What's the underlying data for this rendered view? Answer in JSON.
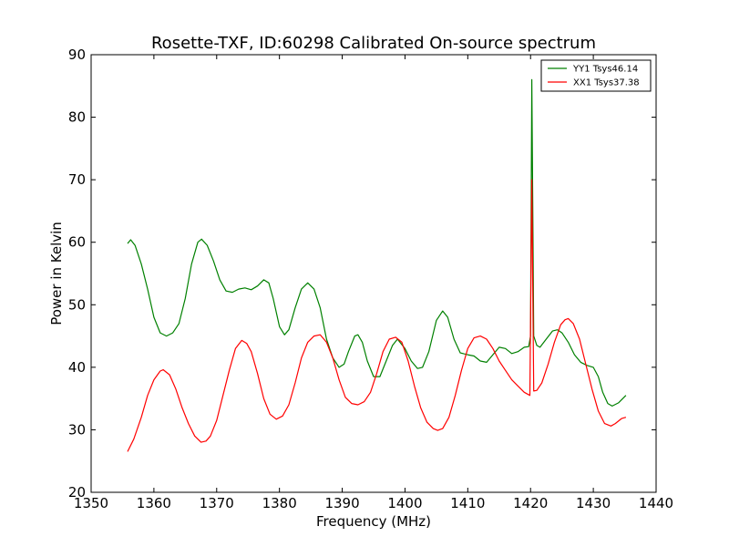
{
  "chart_data": {
    "type": "line",
    "title": "Rosette-TXF, ID:60298 Calibrated On-source spectrum",
    "xlabel": "Frequency (MHz)",
    "ylabel": "Power in Kelvin",
    "xlim": [
      1350,
      1440
    ],
    "ylim": [
      20,
      90
    ],
    "xticks": [
      "1350",
      "1360",
      "1370",
      "1380",
      "1390",
      "1400",
      "1410",
      "1420",
      "1430",
      "1440"
    ],
    "yticks": [
      "20",
      "30",
      "40",
      "50",
      "60",
      "70",
      "80",
      "90"
    ],
    "grid": false,
    "legend_position": "top-right",
    "series": [
      {
        "name": "YY1 Tsys46.14",
        "color": "#008000",
        "points": [
          [
            1355.8,
            59.8
          ],
          [
            1356.3,
            60.4
          ],
          [
            1357.0,
            59.5
          ],
          [
            1358.0,
            56.5
          ],
          [
            1359.0,
            52.5
          ],
          [
            1360.0,
            48.0
          ],
          [
            1361.0,
            45.5
          ],
          [
            1362.0,
            45.0
          ],
          [
            1363.0,
            45.5
          ],
          [
            1364.0,
            47.0
          ],
          [
            1365.0,
            51.0
          ],
          [
            1366.0,
            56.5
          ],
          [
            1367.0,
            60.0
          ],
          [
            1367.6,
            60.5
          ],
          [
            1368.5,
            59.5
          ],
          [
            1369.5,
            57.0
          ],
          [
            1370.5,
            54.0
          ],
          [
            1371.5,
            52.2
          ],
          [
            1372.5,
            52.0
          ],
          [
            1373.5,
            52.5
          ],
          [
            1374.5,
            52.7
          ],
          [
            1375.5,
            52.4
          ],
          [
            1376.5,
            53.0
          ],
          [
            1377.5,
            54.0
          ],
          [
            1378.3,
            53.5
          ],
          [
            1379.0,
            51.0
          ],
          [
            1380.0,
            46.5
          ],
          [
            1380.8,
            45.2
          ],
          [
            1381.5,
            46.0
          ],
          [
            1382.5,
            49.5
          ],
          [
            1383.5,
            52.5
          ],
          [
            1384.5,
            53.5
          ],
          [
            1385.5,
            52.5
          ],
          [
            1386.5,
            49.5
          ],
          [
            1387.5,
            44.5
          ],
          [
            1388.5,
            41.5
          ],
          [
            1389.5,
            40.0
          ],
          [
            1390.3,
            40.5
          ],
          [
            1391.0,
            42.5
          ],
          [
            1392.0,
            45.0
          ],
          [
            1392.5,
            45.2
          ],
          [
            1393.2,
            44.0
          ],
          [
            1394.0,
            41.0
          ],
          [
            1395.0,
            38.5
          ],
          [
            1396.0,
            38.5
          ],
          [
            1397.0,
            41.0
          ],
          [
            1398.0,
            43.5
          ],
          [
            1398.8,
            44.5
          ],
          [
            1400.0,
            43.0
          ],
          [
            1401.0,
            41.0
          ],
          [
            1402.0,
            39.8
          ],
          [
            1402.8,
            40.0
          ],
          [
            1403.8,
            42.5
          ],
          [
            1405.0,
            47.5
          ],
          [
            1406.0,
            49.0
          ],
          [
            1406.8,
            48.0
          ],
          [
            1407.8,
            44.5
          ],
          [
            1408.8,
            42.3
          ],
          [
            1410.0,
            42.0
          ],
          [
            1411.0,
            41.8
          ],
          [
            1412.0,
            41.0
          ],
          [
            1413.0,
            40.8
          ],
          [
            1414.0,
            42.0
          ],
          [
            1415.0,
            43.2
          ],
          [
            1416.0,
            43.0
          ],
          [
            1417.0,
            42.2
          ],
          [
            1418.0,
            42.5
          ],
          [
            1419.0,
            43.2
          ],
          [
            1419.7,
            43.3
          ],
          [
            1420.0,
            45.0
          ],
          [
            1420.2,
            86.0
          ],
          [
            1420.5,
            45.0
          ],
          [
            1421.0,
            43.5
          ],
          [
            1421.5,
            43.2
          ],
          [
            1422.5,
            44.5
          ],
          [
            1423.5,
            45.8
          ],
          [
            1424.3,
            46.0
          ],
          [
            1425.0,
            45.5
          ],
          [
            1426.0,
            44.0
          ],
          [
            1427.0,
            42.0
          ],
          [
            1428.0,
            40.8
          ],
          [
            1429.0,
            40.3
          ],
          [
            1430.0,
            40.0
          ],
          [
            1430.8,
            38.5
          ],
          [
            1431.5,
            36.0
          ],
          [
            1432.3,
            34.2
          ],
          [
            1433.0,
            33.8
          ],
          [
            1434.0,
            34.3
          ],
          [
            1435.2,
            35.5
          ]
        ]
      },
      {
        "name": "XX1 Tsys37.38",
        "color": "#ff0000",
        "points": [
          [
            1355.8,
            26.5
          ],
          [
            1356.8,
            28.5
          ],
          [
            1358.0,
            32.0
          ],
          [
            1359.0,
            35.5
          ],
          [
            1360.0,
            38.0
          ],
          [
            1361.0,
            39.4
          ],
          [
            1361.5,
            39.6
          ],
          [
            1362.5,
            38.8
          ],
          [
            1363.5,
            36.5
          ],
          [
            1364.5,
            33.5
          ],
          [
            1365.5,
            31.0
          ],
          [
            1366.5,
            29.0
          ],
          [
            1367.5,
            28.0
          ],
          [
            1368.3,
            28.2
          ],
          [
            1369.0,
            29.0
          ],
          [
            1370.0,
            31.5
          ],
          [
            1371.0,
            35.5
          ],
          [
            1372.0,
            39.5
          ],
          [
            1373.0,
            43.0
          ],
          [
            1374.0,
            44.3
          ],
          [
            1374.8,
            43.8
          ],
          [
            1375.5,
            42.5
          ],
          [
            1376.5,
            39.0
          ],
          [
            1377.5,
            35.0
          ],
          [
            1378.5,
            32.5
          ],
          [
            1379.5,
            31.7
          ],
          [
            1380.5,
            32.2
          ],
          [
            1381.5,
            34.0
          ],
          [
            1382.5,
            37.5
          ],
          [
            1383.5,
            41.5
          ],
          [
            1384.5,
            44.0
          ],
          [
            1385.5,
            45.0
          ],
          [
            1386.5,
            45.2
          ],
          [
            1387.5,
            44.0
          ],
          [
            1388.5,
            41.5
          ],
          [
            1389.5,
            38.0
          ],
          [
            1390.5,
            35.2
          ],
          [
            1391.5,
            34.2
          ],
          [
            1392.5,
            34.0
          ],
          [
            1393.5,
            34.5
          ],
          [
            1394.5,
            36.0
          ],
          [
            1395.5,
            39.0
          ],
          [
            1396.5,
            42.5
          ],
          [
            1397.5,
            44.5
          ],
          [
            1398.5,
            44.8
          ],
          [
            1399.5,
            44.0
          ],
          [
            1400.5,
            41.0
          ],
          [
            1401.5,
            37.0
          ],
          [
            1402.5,
            33.5
          ],
          [
            1403.5,
            31.2
          ],
          [
            1404.5,
            30.2
          ],
          [
            1405.2,
            29.9
          ],
          [
            1406.0,
            30.2
          ],
          [
            1407.0,
            32.0
          ],
          [
            1408.0,
            35.5
          ],
          [
            1409.0,
            39.5
          ],
          [
            1410.0,
            43.0
          ],
          [
            1411.0,
            44.7
          ],
          [
            1412.0,
            45.0
          ],
          [
            1413.0,
            44.5
          ],
          [
            1414.0,
            43.0
          ],
          [
            1415.0,
            41.0
          ],
          [
            1416.0,
            39.5
          ],
          [
            1417.0,
            38.0
          ],
          [
            1418.0,
            37.0
          ],
          [
            1419.0,
            36.0
          ],
          [
            1419.9,
            35.5
          ],
          [
            1420.2,
            70.0
          ],
          [
            1420.5,
            36.2
          ],
          [
            1421.0,
            36.3
          ],
          [
            1421.8,
            37.5
          ],
          [
            1422.8,
            40.5
          ],
          [
            1423.8,
            44.0
          ],
          [
            1424.8,
            46.8
          ],
          [
            1425.5,
            47.6
          ],
          [
            1426.0,
            47.8
          ],
          [
            1426.8,
            47.0
          ],
          [
            1427.8,
            44.5
          ],
          [
            1428.8,
            40.5
          ],
          [
            1429.8,
            36.5
          ],
          [
            1430.8,
            33.0
          ],
          [
            1431.8,
            31.0
          ],
          [
            1432.8,
            30.6
          ],
          [
            1433.5,
            31.0
          ],
          [
            1434.5,
            31.8
          ],
          [
            1435.2,
            32.0
          ]
        ]
      }
    ]
  }
}
